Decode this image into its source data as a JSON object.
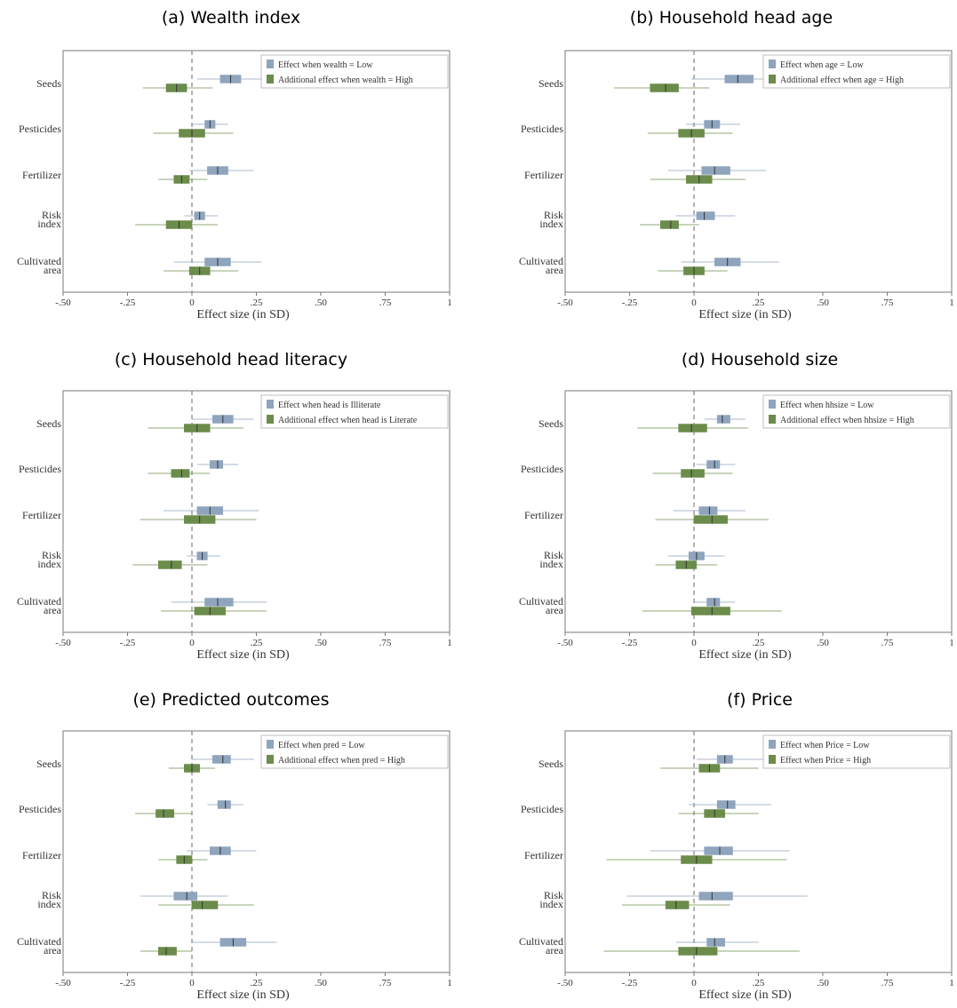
{
  "chart_data": [
    {
      "type": "forest",
      "title": "(a) Wealth index",
      "xlabel": "Effect size (in SD)",
      "xlim": [
        -0.5,
        1.0
      ],
      "xticks": [
        -0.5,
        -0.25,
        0,
        0.25,
        0.5,
        0.75,
        1.0
      ],
      "xtick_labels": [
        "-.50",
        "-.25",
        "0",
        ".25",
        ".50",
        ".75",
        "1"
      ],
      "reference_line": 0,
      "categories": [
        "Seeds",
        "Pesticides",
        "Fertilizer",
        "Risk\nindex",
        "Cultivated\narea"
      ],
      "legend_position": "top-right",
      "series": [
        {
          "name": "Effect when wealth = Low",
          "color": "#8fa4bd",
          "points": [
            {
              "est": 0.15,
              "ci90": [
                0.11,
                0.19
              ],
              "ci95": [
                0.02,
                0.3
              ]
            },
            {
              "est": 0.07,
              "ci90": [
                0.05,
                0.09
              ],
              "ci95": [
                0.0,
                0.14
              ]
            },
            {
              "est": 0.1,
              "ci90": [
                0.06,
                0.14
              ],
              "ci95": [
                -0.01,
                0.24
              ]
            },
            {
              "est": 0.03,
              "ci90": [
                0.01,
                0.05
              ],
              "ci95": [
                -0.03,
                0.1
              ]
            },
            {
              "est": 0.1,
              "ci90": [
                0.05,
                0.15
              ],
              "ci95": [
                -0.07,
                0.27
              ]
            }
          ]
        },
        {
          "name": "Additional effect when wealth = High",
          "color": "#6b8c4a",
          "points": [
            {
              "est": -0.06,
              "ci90": [
                -0.1,
                -0.02
              ],
              "ci95": [
                -0.19,
                0.08
              ]
            },
            {
              "est": 0.0,
              "ci90": [
                -0.05,
                0.05
              ],
              "ci95": [
                -0.15,
                0.16
              ]
            },
            {
              "est": -0.04,
              "ci90": [
                -0.07,
                -0.01
              ],
              "ci95": [
                -0.13,
                0.06
              ]
            },
            {
              "est": -0.05,
              "ci90": [
                -0.1,
                0.0
              ],
              "ci95": [
                -0.22,
                0.1
              ]
            },
            {
              "est": 0.03,
              "ci90": [
                -0.01,
                0.07
              ],
              "ci95": [
                -0.11,
                0.18
              ]
            }
          ]
        }
      ]
    },
    {
      "type": "forest",
      "title": "(b) Household head age",
      "xlabel": "Effect size (in SD)",
      "xlim": [
        -0.5,
        1.0
      ],
      "xticks": [
        -0.5,
        -0.25,
        0,
        0.25,
        0.5,
        0.75,
        1.0
      ],
      "xtick_labels": [
        "-.50",
        "-.25",
        "0",
        ".25",
        ".50",
        ".75",
        "1"
      ],
      "reference_line": 0,
      "categories": [
        "Seeds",
        "Pesticides",
        "Fertilizer",
        "Risk\nindex",
        "Cultivated\narea"
      ],
      "legend_position": "top-right",
      "series": [
        {
          "name": "Effect when age = Low",
          "color": "#8fa4bd",
          "points": [
            {
              "est": 0.17,
              "ci90": [
                0.12,
                0.23
              ],
              "ci95": [
                -0.01,
                0.36
              ]
            },
            {
              "est": 0.07,
              "ci90": [
                0.04,
                0.1
              ],
              "ci95": [
                -0.03,
                0.18
              ]
            },
            {
              "est": 0.08,
              "ci90": [
                0.03,
                0.14
              ],
              "ci95": [
                -0.1,
                0.28
              ]
            },
            {
              "est": 0.04,
              "ci90": [
                0.01,
                0.08
              ],
              "ci95": [
                -0.07,
                0.16
              ]
            },
            {
              "est": 0.13,
              "ci90": [
                0.08,
                0.18
              ],
              "ci95": [
                -0.05,
                0.33
              ]
            }
          ]
        },
        {
          "name": "Additional effect when age = High",
          "color": "#6b8c4a",
          "points": [
            {
              "est": -0.11,
              "ci90": [
                -0.17,
                -0.06
              ],
              "ci95": [
                -0.31,
                0.06
              ]
            },
            {
              "est": -0.01,
              "ci90": [
                -0.06,
                0.04
              ],
              "ci95": [
                -0.18,
                0.15
              ]
            },
            {
              "est": 0.02,
              "ci90": [
                -0.03,
                0.07
              ],
              "ci95": [
                -0.17,
                0.2
              ]
            },
            {
              "est": -0.09,
              "ci90": [
                -0.13,
                -0.06
              ],
              "ci95": [
                -0.21,
                0.02
              ]
            },
            {
              "est": 0.0,
              "ci90": [
                -0.04,
                0.04
              ],
              "ci95": [
                -0.14,
                0.13
              ]
            }
          ]
        }
      ]
    },
    {
      "type": "forest",
      "title": "(c) Household head literacy",
      "xlabel": "Effect size (in SD)",
      "xlim": [
        -0.5,
        1.0
      ],
      "xticks": [
        -0.5,
        -0.25,
        0,
        0.25,
        0.5,
        0.75,
        1.0
      ],
      "xtick_labels": [
        "-.50",
        "-.25",
        "0",
        ".25",
        ".50",
        ".75",
        "1"
      ],
      "reference_line": 0,
      "categories": [
        "Seeds",
        "Pesticides",
        "Fertilizer",
        "Risk\nindex",
        "Cultivated\narea"
      ],
      "legend_position": "top-right",
      "series": [
        {
          "name": "Effect when head is Illiterate",
          "color": "#8fa4bd",
          "points": [
            {
              "est": 0.12,
              "ci90": [
                0.08,
                0.16
              ],
              "ci95": [
                0.0,
                0.24
              ]
            },
            {
              "est": 0.1,
              "ci90": [
                0.07,
                0.12
              ],
              "ci95": [
                0.02,
                0.18
              ]
            },
            {
              "est": 0.07,
              "ci90": [
                0.02,
                0.12
              ],
              "ci95": [
                -0.11,
                0.26
              ]
            },
            {
              "est": 0.04,
              "ci90": [
                0.02,
                0.06
              ],
              "ci95": [
                -0.02,
                0.11
              ]
            },
            {
              "est": 0.1,
              "ci90": [
                0.05,
                0.16
              ],
              "ci95": [
                -0.08,
                0.29
              ]
            }
          ]
        },
        {
          "name": "Additional effect when head is Literate",
          "color": "#6b8c4a",
          "points": [
            {
              "est": 0.02,
              "ci90": [
                -0.03,
                0.07
              ],
              "ci95": [
                -0.17,
                0.2
              ]
            },
            {
              "est": -0.04,
              "ci90": [
                -0.08,
                -0.01
              ],
              "ci95": [
                -0.17,
                0.07
              ]
            },
            {
              "est": 0.03,
              "ci90": [
                -0.03,
                0.09
              ],
              "ci95": [
                -0.2,
                0.25
              ]
            },
            {
              "est": -0.08,
              "ci90": [
                -0.13,
                -0.04
              ],
              "ci95": [
                -0.23,
                0.06
              ]
            },
            {
              "est": 0.07,
              "ci90": [
                0.01,
                0.13
              ],
              "ci95": [
                -0.12,
                0.29
              ]
            }
          ]
        }
      ]
    },
    {
      "type": "forest",
      "title": "(d) Household size",
      "xlabel": "Effect size (in SD)",
      "xlim": [
        -0.5,
        1.0
      ],
      "xticks": [
        -0.5,
        -0.25,
        0,
        0.25,
        0.5,
        0.75,
        1.0
      ],
      "xtick_labels": [
        "-.50",
        "-.25",
        "0",
        ".25",
        ".50",
        ".75",
        "1"
      ],
      "reference_line": 0,
      "categories": [
        "Seeds",
        "Pesticides",
        "Fertilizer",
        "Risk\nindex",
        "Cultivated\narea"
      ],
      "legend_position": "top-right",
      "series": [
        {
          "name": "Effect when hhsize = Low",
          "color": "#8fa4bd",
          "points": [
            {
              "est": 0.11,
              "ci90": [
                0.09,
                0.14
              ],
              "ci95": [
                0.04,
                0.2
              ]
            },
            {
              "est": 0.08,
              "ci90": [
                0.05,
                0.1
              ],
              "ci95": [
                0.01,
                0.16
              ]
            },
            {
              "est": 0.06,
              "ci90": [
                0.02,
                0.09
              ],
              "ci95": [
                -0.08,
                0.2
              ]
            },
            {
              "est": 0.01,
              "ci90": [
                -0.02,
                0.04
              ],
              "ci95": [
                -0.1,
                0.12
              ]
            },
            {
              "est": 0.08,
              "ci90": [
                0.05,
                0.1
              ],
              "ci95": [
                0.0,
                0.16
              ]
            }
          ]
        },
        {
          "name": "Additional effect when hhsize = High",
          "color": "#6b8c4a",
          "points": [
            {
              "est": -0.01,
              "ci90": [
                -0.06,
                0.05
              ],
              "ci95": [
                -0.22,
                0.21
              ]
            },
            {
              "est": -0.01,
              "ci90": [
                -0.05,
                0.04
              ],
              "ci95": [
                -0.16,
                0.15
              ]
            },
            {
              "est": 0.07,
              "ci90": [
                0.0,
                0.13
              ],
              "ci95": [
                -0.15,
                0.29
              ]
            },
            {
              "est": -0.03,
              "ci90": [
                -0.07,
                0.01
              ],
              "ci95": [
                -0.15,
                0.09
              ]
            },
            {
              "est": 0.07,
              "ci90": [
                -0.01,
                0.14
              ],
              "ci95": [
                -0.2,
                0.34
              ]
            }
          ]
        }
      ]
    },
    {
      "type": "forest",
      "title": "(e) Predicted outcomes",
      "xlabel": "Effect size (in SD)",
      "xlim": [
        -0.5,
        1.0
      ],
      "xticks": [
        -0.5,
        -0.25,
        0,
        0.25,
        0.5,
        0.75,
        1.0
      ],
      "xtick_labels": [
        "-.50",
        "-.25",
        "0",
        ".25",
        ".50",
        ".75",
        "1"
      ],
      "reference_line": 0,
      "categories": [
        "Seeds",
        "Pesticides",
        "Fertilizer",
        "Risk\nindex",
        "Cultivated\narea"
      ],
      "legend_position": "top-right",
      "series": [
        {
          "name": "Effect when pred = Low",
          "color": "#8fa4bd",
          "points": [
            {
              "est": 0.12,
              "ci90": [
                0.08,
                0.15
              ],
              "ci95": [
                0.0,
                0.24
              ]
            },
            {
              "est": 0.13,
              "ci90": [
                0.1,
                0.15
              ],
              "ci95": [
                0.06,
                0.2
              ]
            },
            {
              "est": 0.11,
              "ci90": [
                0.07,
                0.15
              ],
              "ci95": [
                -0.02,
                0.25
              ]
            },
            {
              "est": -0.02,
              "ci90": [
                -0.07,
                0.02
              ],
              "ci95": [
                -0.2,
                0.14
              ]
            },
            {
              "est": 0.16,
              "ci90": [
                0.11,
                0.21
              ],
              "ci95": [
                0.0,
                0.33
              ]
            }
          ]
        },
        {
          "name": "Additional effect when pred = High",
          "color": "#6b8c4a",
          "points": [
            {
              "est": 0.0,
              "ci90": [
                -0.03,
                0.03
              ],
              "ci95": [
                -0.09,
                0.09
              ]
            },
            {
              "est": -0.11,
              "ci90": [
                -0.14,
                -0.07
              ],
              "ci95": [
                -0.22,
                0.0
              ]
            },
            {
              "est": -0.03,
              "ci90": [
                -0.06,
                0.0
              ],
              "ci95": [
                -0.13,
                0.06
              ]
            },
            {
              "est": 0.04,
              "ci90": [
                0.0,
                0.1
              ],
              "ci95": [
                -0.13,
                0.24
              ]
            },
            {
              "est": -0.1,
              "ci90": [
                -0.13,
                -0.06
              ],
              "ci95": [
                -0.2,
                0.0
              ]
            }
          ]
        }
      ]
    },
    {
      "type": "forest",
      "title": "(f) Price",
      "xlabel": "Effect size (in SD)",
      "xlim": [
        -0.5,
        1.0
      ],
      "xticks": [
        -0.5,
        -0.25,
        0,
        0.25,
        0.5,
        0.75,
        1.0
      ],
      "xtick_labels": [
        "-.50",
        "-.25",
        "0",
        ".25",
        ".50",
        ".75",
        "1"
      ],
      "reference_line": 0,
      "categories": [
        "Seeds",
        "Pesticides",
        "Fertilizer",
        "Risk\nindex",
        "Cultivated\narea"
      ],
      "legend_position": "top-right",
      "series": [
        {
          "name": "Effect when Price = Low",
          "color": "#8fa4bd",
          "points": [
            {
              "est": 0.12,
              "ci90": [
                0.09,
                0.15
              ],
              "ci95": [
                0.01,
                0.27
              ]
            },
            {
              "est": 0.13,
              "ci90": [
                0.09,
                0.16
              ],
              "ci95": [
                -0.02,
                0.3
              ]
            },
            {
              "est": 0.1,
              "ci90": [
                0.04,
                0.15
              ],
              "ci95": [
                -0.17,
                0.37
              ]
            },
            {
              "est": 0.07,
              "ci90": [
                0.02,
                0.15
              ],
              "ci95": [
                -0.26,
                0.44
              ]
            },
            {
              "est": 0.08,
              "ci90": [
                0.05,
                0.12
              ],
              "ci95": [
                -0.07,
                0.25
              ]
            }
          ]
        },
        {
          "name": "Effect when Price = High",
          "color": "#6b8c4a",
          "points": [
            {
              "est": 0.06,
              "ci90": [
                0.02,
                0.1
              ],
              "ci95": [
                -0.13,
                0.25
              ]
            },
            {
              "est": 0.08,
              "ci90": [
                0.04,
                0.12
              ],
              "ci95": [
                -0.06,
                0.25
              ]
            },
            {
              "est": 0.01,
              "ci90": [
                -0.05,
                0.07
              ],
              "ci95": [
                -0.34,
                0.36
              ]
            },
            {
              "est": -0.07,
              "ci90": [
                -0.11,
                -0.02
              ],
              "ci95": [
                -0.28,
                0.14
              ]
            },
            {
              "est": 0.01,
              "ci90": [
                -0.06,
                0.09
              ],
              "ci95": [
                -0.35,
                0.41
              ]
            }
          ]
        }
      ]
    }
  ]
}
